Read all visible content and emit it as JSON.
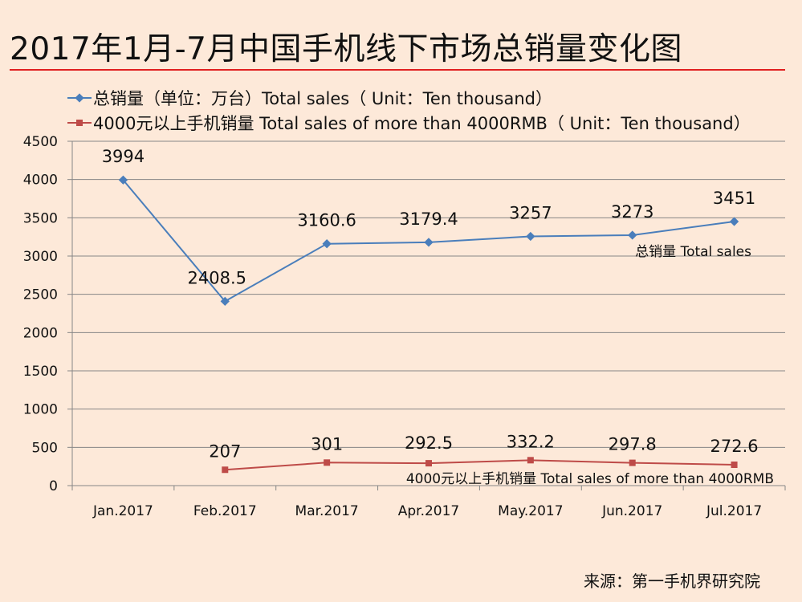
{
  "title": "2017年1月-7月中国手机线下市场总销量变化图",
  "source": "来源：第一手机界研究院",
  "colors": {
    "title_rule": "#e02020",
    "series_total": "#4a7ebb",
    "series_premium": "#be4b48",
    "grid": "#868686",
    "background": "#fde9d9"
  },
  "chart_data": {
    "type": "line",
    "categories": [
      "Jan.2017",
      "Feb.2017",
      "Mar.2017",
      "Apr.2017",
      "May.2017",
      "Jun.2017",
      "Jul.2017"
    ],
    "ylim": [
      0,
      4500
    ],
    "yticks": [
      0,
      500,
      1000,
      1500,
      2000,
      2500,
      3000,
      3500,
      4000,
      4500
    ],
    "grid": true,
    "legend_position": "top-left",
    "series": [
      {
        "name": "总销量（单位：万台）Total sales（ Unit：Ten thousand）",
        "end_label": "总销量 Total sales",
        "marker": "diamond",
        "values": [
          3994,
          2408.5,
          3160.6,
          3179.4,
          3257,
          3273,
          3451
        ],
        "labels": [
          "3994",
          "2408.5",
          "3160.6",
          "3179.4",
          "3257",
          "3273",
          "3451"
        ]
      },
      {
        "name": "4000元以上手机销量 Total sales of more than 4000RMB（ Unit：Ten thousand）",
        "end_label": "4000元以上手机销量  Total sales of more than 4000RMB",
        "marker": "square",
        "values": [
          null,
          207,
          301,
          292.5,
          332.2,
          297.8,
          272.6
        ],
        "labels": [
          "",
          "207",
          "301",
          "292.5",
          "332.2",
          "297.8",
          "272.6"
        ]
      }
    ]
  }
}
